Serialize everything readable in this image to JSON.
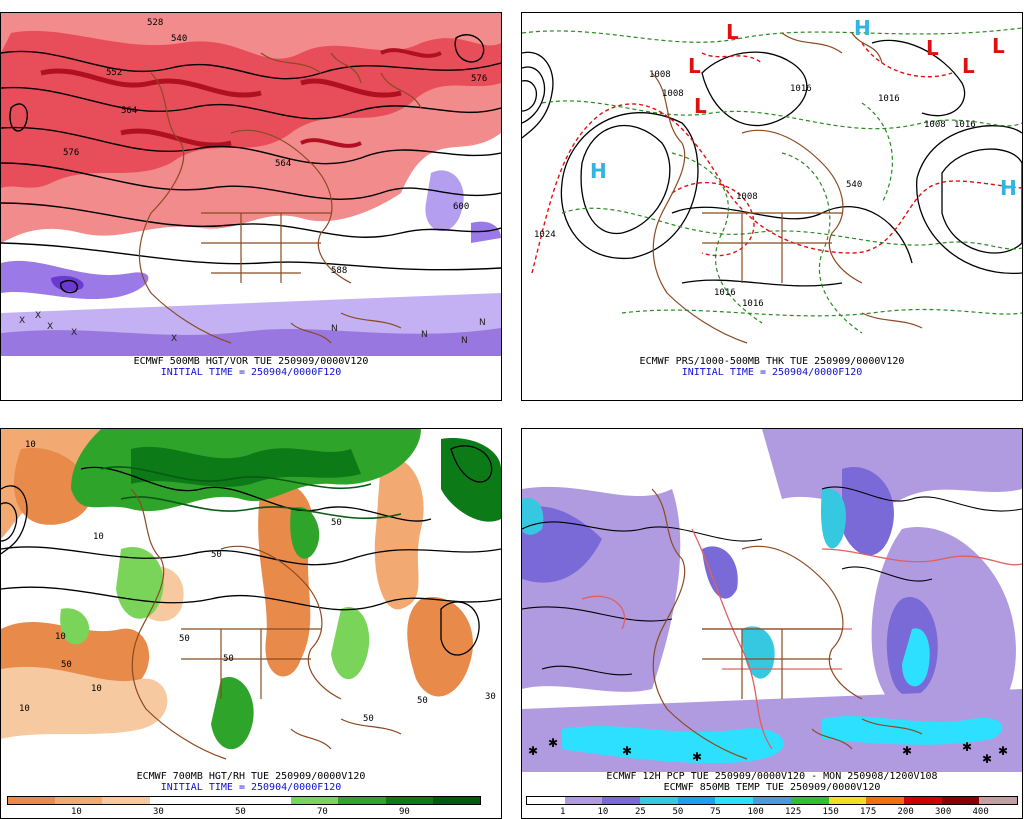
{
  "panels": [
    {
      "id": "tl",
      "caption": "ECMWF 500MB HGT/VOR TUE 250909/0000V120",
      "initial": "INITIAL TIME = 250904/0000F120",
      "labels": [
        "528",
        "540",
        "552",
        "564",
        "576",
        "588",
        "576",
        "564",
        "600"
      ]
    },
    {
      "id": "tr",
      "caption": "ECMWF PRS/1000-500MB THK TUE 250909/0000V120",
      "initial": "INITIAL TIME = 250904/0000F120",
      "labels": [
        "1008",
        "1008",
        "1016",
        "1024",
        "1016",
        "1008",
        "1016",
        "1016",
        "1008",
        "1016",
        "540"
      ],
      "pressure_centers": [
        "L",
        "L",
        "L",
        "L",
        "L",
        "L",
        "H",
        "H",
        "H"
      ]
    },
    {
      "id": "bl",
      "caption": "ECMWF 700MB HGT/RH TUE 250909/0000V120",
      "initial": "INITIAL TIME = 250904/0000F120",
      "labels": [
        "10",
        "50",
        "10",
        "50",
        "50",
        "10",
        "50",
        "50",
        "10",
        "50",
        "30",
        "10",
        "50"
      ],
      "colorbar": {
        "ticks": [
          "10",
          "30",
          "50",
          "70",
          "90"
        ],
        "colors": [
          "#e88a4a",
          "#f2aa72",
          "#f7c9a0",
          "#ffffff",
          "#ffffff",
          "#ffffff",
          "#7ad45a",
          "#2fa42a",
          "#0d7a18",
          "#005a10"
        ]
      }
    },
    {
      "id": "br",
      "caption": "ECMWF 12H PCP TUE 250909/0000V120 - MON 250908/1200V108",
      "initial": "ECMWF 850MB TEMP TUE 250909/0000V120",
      "colorbar": {
        "ticks": [
          "1",
          "10",
          "25",
          "50",
          "75",
          "100",
          "125",
          "150",
          "175",
          "200",
          "300",
          "400"
        ],
        "colors": [
          "#ffffff",
          "#b09ae0",
          "#7a6ad8",
          "#36c8e0",
          "#1e9ef0",
          "#2ee0ff",
          "#4a9ae0",
          "#2fc02f",
          "#f0e020",
          "#f07010",
          "#d00000",
          "#8a0000",
          "#c0a0a0"
        ]
      }
    }
  ]
}
